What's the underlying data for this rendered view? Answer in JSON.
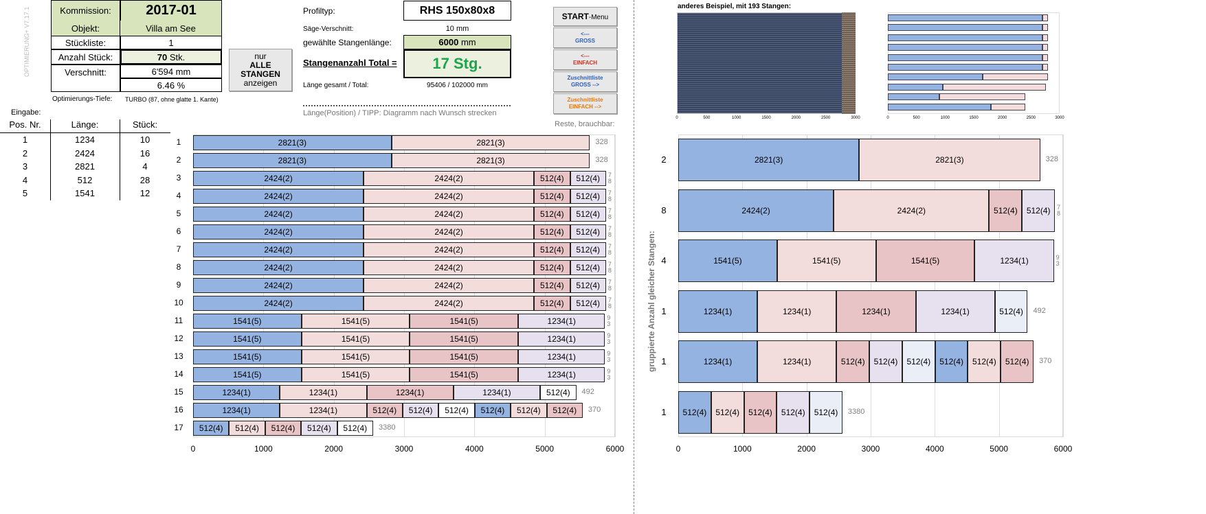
{
  "version_label": "OPTIMIERUNG+ V7.17.1",
  "header": {
    "kommission_label": "Kommission:",
    "kommission_value": "2017-01",
    "objekt_label": "Objekt:",
    "objekt_value": "Villa am See",
    "stueckliste_label": "Stückliste:",
    "stueckliste_value": "1",
    "anzahl_label": "Anzahl Stück:",
    "anzahl_value": "70",
    "anzahl_unit": "Stk.",
    "verschnitt_label": "Verschnitt:",
    "verschnitt_mm": "6'594 mm",
    "verschnitt_pct": "6.46 %",
    "tiefe_label": "Optimierungs-Tiefe:",
    "tiefe_value": "TURBO (87, ohne glatte 1. Kante)"
  },
  "alle_button": {
    "line1": "nur",
    "line2": "ALLE",
    "line3": "STANGEN",
    "line4": "anzeigen"
  },
  "profile": {
    "profiltyp_label": "Profiltyp:",
    "profiltyp_value": "RHS 150x80x8",
    "saege_label": "Säge-Verschnitt:",
    "saege_value": "10 mm",
    "stangen_label": "gewählte Stangenlänge:",
    "stangen_value": "6000",
    "stangen_unit": "mm",
    "total_label": "Stangenanzahl Total =",
    "total_value": "17 Stg.",
    "laenge_label": "Länge gesamt / Total:",
    "laenge_value": "95406 / 102000 mm",
    "tipp": "Länge(Position) / TIPP: Diagramm nach Wunsch strecken"
  },
  "menu": {
    "start": "START",
    "start_sub": "-Menu",
    "gross_arrow": "<---",
    "gross": "GROSS",
    "einfach_arrow": "<---",
    "einfach": "EINFACH",
    "zl_gross_1": "Zuschnittliste",
    "zl_gross_2": "GROSS -->",
    "zl_einfach_1": "Zuschnittliste",
    "zl_einfach_2": "EINFACH -->"
  },
  "reste_label": "Reste, brauchbar:",
  "input": {
    "title": "Eingabe:",
    "headers": [
      "Pos. Nr.",
      "Länge:",
      "Stück:"
    ],
    "rows": [
      [
        "1",
        "1234",
        "10"
      ],
      [
        "2",
        "2424",
        "16"
      ],
      [
        "3",
        "2821",
        "4"
      ],
      [
        "4",
        "512",
        "28"
      ],
      [
        "5",
        "1541",
        "12"
      ]
    ]
  },
  "right": {
    "example_title": "anderes Beispiel, mit 193 Stangen:",
    "axis_title": "gruppierte  Anzahl  gleicher Stangen:"
  },
  "colors": {
    "blue": "#95b3e0",
    "pink": "#f3dcdc",
    "rose": "#e9c4c6",
    "lav": "#e7e1ef",
    "ice": "#e9eef7",
    "white": "#ffffff"
  },
  "chart_data": [
    {
      "type": "bar",
      "orientation": "horizontal-stacked",
      "xlim": [
        0,
        6000
      ],
      "xticks": [
        "0",
        "1000",
        "2000",
        "3000",
        "4000",
        "5000",
        "6000"
      ],
      "rows": [
        {
          "label": "1",
          "rest": "328",
          "segs": [
            [
              "2821(3)",
              2821,
              "blue"
            ],
            [
              "2821(3)",
              2821,
              "pink"
            ]
          ]
        },
        {
          "label": "2",
          "rest": "328",
          "segs": [
            [
              "2821(3)",
              2821,
              "blue"
            ],
            [
              "2821(3)",
              2821,
              "pink"
            ]
          ]
        },
        {
          "label": "3",
          "rest": "7\n8",
          "segs": [
            [
              "2424(2)",
              2424,
              "blue"
            ],
            [
              "2424(2)",
              2424,
              "pink"
            ],
            [
              "512(4)",
              512,
              "rose"
            ],
            [
              "512(4)",
              512,
              "lav"
            ]
          ]
        },
        {
          "label": "4",
          "rest": "7\n8",
          "segs": [
            [
              "2424(2)",
              2424,
              "blue"
            ],
            [
              "2424(2)",
              2424,
              "pink"
            ],
            [
              "512(4)",
              512,
              "rose"
            ],
            [
              "512(4)",
              512,
              "lav"
            ]
          ]
        },
        {
          "label": "5",
          "rest": "7\n8",
          "segs": [
            [
              "2424(2)",
              2424,
              "blue"
            ],
            [
              "2424(2)",
              2424,
              "pink"
            ],
            [
              "512(4)",
              512,
              "rose"
            ],
            [
              "512(4)",
              512,
              "lav"
            ]
          ]
        },
        {
          "label": "6",
          "rest": "7\n8",
          "segs": [
            [
              "2424(2)",
              2424,
              "blue"
            ],
            [
              "2424(2)",
              2424,
              "pink"
            ],
            [
              "512(4)",
              512,
              "rose"
            ],
            [
              "512(4)",
              512,
              "lav"
            ]
          ]
        },
        {
          "label": "7",
          "rest": "7\n8",
          "segs": [
            [
              "2424(2)",
              2424,
              "blue"
            ],
            [
              "2424(2)",
              2424,
              "pink"
            ],
            [
              "512(4)",
              512,
              "rose"
            ],
            [
              "512(4)",
              512,
              "lav"
            ]
          ]
        },
        {
          "label": "8",
          "rest": "7\n8",
          "segs": [
            [
              "2424(2)",
              2424,
              "blue"
            ],
            [
              "2424(2)",
              2424,
              "pink"
            ],
            [
              "512(4)",
              512,
              "rose"
            ],
            [
              "512(4)",
              512,
              "lav"
            ]
          ]
        },
        {
          "label": "9",
          "rest": "7\n8",
          "segs": [
            [
              "2424(2)",
              2424,
              "blue"
            ],
            [
              "2424(2)",
              2424,
              "pink"
            ],
            [
              "512(4)",
              512,
              "rose"
            ],
            [
              "512(4)",
              512,
              "lav"
            ]
          ]
        },
        {
          "label": "10",
          "rest": "7\n8",
          "segs": [
            [
              "2424(2)",
              2424,
              "blue"
            ],
            [
              "2424(2)",
              2424,
              "pink"
            ],
            [
              "512(4)",
              512,
              "rose"
            ],
            [
              "512(4)",
              512,
              "lav"
            ]
          ]
        },
        {
          "label": "11",
          "rest": "9\n3",
          "segs": [
            [
              "1541(5)",
              1541,
              "blue"
            ],
            [
              "1541(5)",
              1541,
              "pink"
            ],
            [
              "1541(5)",
              1541,
              "rose"
            ],
            [
              "1234(1)",
              1234,
              "lav"
            ]
          ]
        },
        {
          "label": "12",
          "rest": "9\n3",
          "segs": [
            [
              "1541(5)",
              1541,
              "blue"
            ],
            [
              "1541(5)",
              1541,
              "pink"
            ],
            [
              "1541(5)",
              1541,
              "rose"
            ],
            [
              "1234(1)",
              1234,
              "lav"
            ]
          ]
        },
        {
          "label": "13",
          "rest": "9\n3",
          "segs": [
            [
              "1541(5)",
              1541,
              "blue"
            ],
            [
              "1541(5)",
              1541,
              "pink"
            ],
            [
              "1541(5)",
              1541,
              "rose"
            ],
            [
              "1234(1)",
              1234,
              "lav"
            ]
          ]
        },
        {
          "label": "14",
          "rest": "9\n3",
          "segs": [
            [
              "1541(5)",
              1541,
              "blue"
            ],
            [
              "1541(5)",
              1541,
              "pink"
            ],
            [
              "1541(5)",
              1541,
              "rose"
            ],
            [
              "1234(1)",
              1234,
              "lav"
            ]
          ]
        },
        {
          "label": "15",
          "rest": "492",
          "segs": [
            [
              "1234(1)",
              1234,
              "blue"
            ],
            [
              "1234(1)",
              1234,
              "pink"
            ],
            [
              "1234(1)",
              1234,
              "rose"
            ],
            [
              "1234(1)",
              1234,
              "lav"
            ],
            [
              "512(4)",
              512,
              "white"
            ]
          ]
        },
        {
          "label": "16",
          "rest": "370",
          "segs": [
            [
              "1234(1)",
              1234,
              "blue"
            ],
            [
              "1234(1)",
              1234,
              "pink"
            ],
            [
              "512(4)",
              512,
              "rose"
            ],
            [
              "512(4)",
              512,
              "lav"
            ],
            [
              "512(4)",
              512,
              "white"
            ],
            [
              "512(4)",
              512,
              "blue"
            ],
            [
              "512(4)",
              512,
              "pink"
            ],
            [
              "512(4)",
              512,
              "rose"
            ]
          ]
        },
        {
          "label": "17",
          "rest": "3380",
          "segs": [
            [
              "512(4)",
              512,
              "blue"
            ],
            [
              "512(4)",
              512,
              "pink"
            ],
            [
              "512(4)",
              512,
              "rose"
            ],
            [
              "512(4)",
              512,
              "lav"
            ],
            [
              "512(4)",
              512,
              "white"
            ]
          ]
        }
      ]
    },
    {
      "type": "bar",
      "orientation": "horizontal-stacked",
      "xlim": [
        0,
        6000
      ],
      "xticks": [
        "0",
        "1000",
        "2000",
        "3000",
        "4000",
        "5000",
        "6000"
      ],
      "rows": [
        {
          "label": "2",
          "rest": "328",
          "segs": [
            [
              "2821(3)",
              2821,
              "blue"
            ],
            [
              "2821(3)",
              2821,
              "pink"
            ]
          ]
        },
        {
          "label": "8",
          "rest": "7\n8",
          "segs": [
            [
              "2424(2)",
              2424,
              "blue"
            ],
            [
              "2424(2)",
              2424,
              "pink"
            ],
            [
              "512(4)",
              512,
              "rose"
            ],
            [
              "512(4)",
              512,
              "lav"
            ]
          ]
        },
        {
          "label": "4",
          "rest": "9\n3",
          "segs": [
            [
              "1541(5)",
              1541,
              "blue"
            ],
            [
              "1541(5)",
              1541,
              "pink"
            ],
            [
              "1541(5)",
              1541,
              "rose"
            ],
            [
              "1234(1)",
              1234,
              "lav"
            ]
          ]
        },
        {
          "label": "1",
          "rest": "492",
          "segs": [
            [
              "1234(1)",
              1234,
              "blue"
            ],
            [
              "1234(1)",
              1234,
              "pink"
            ],
            [
              "1234(1)",
              1234,
              "rose"
            ],
            [
              "1234(1)",
              1234,
              "lav"
            ],
            [
              "512(4)",
              512,
              "ice"
            ]
          ]
        },
        {
          "label": "1",
          "rest": "370",
          "segs": [
            [
              "1234(1)",
              1234,
              "blue"
            ],
            [
              "1234(1)",
              1234,
              "pink"
            ],
            [
              "512(4)",
              512,
              "rose"
            ],
            [
              "512(4)",
              512,
              "lav"
            ],
            [
              "512(4)",
              512,
              "ice"
            ],
            [
              "512(4)",
              512,
              "blue"
            ],
            [
              "512(4)",
              512,
              "pink"
            ],
            [
              "512(4)",
              512,
              "rose"
            ]
          ]
        },
        {
          "label": "1",
          "rest": "3380",
          "segs": [
            [
              "512(4)",
              512,
              "blue"
            ],
            [
              "512(4)",
              512,
              "pink"
            ],
            [
              "512(4)",
              512,
              "rose"
            ],
            [
              "512(4)",
              512,
              "lav"
            ],
            [
              "512(4)",
              512,
              "ice"
            ]
          ]
        }
      ]
    }
  ]
}
